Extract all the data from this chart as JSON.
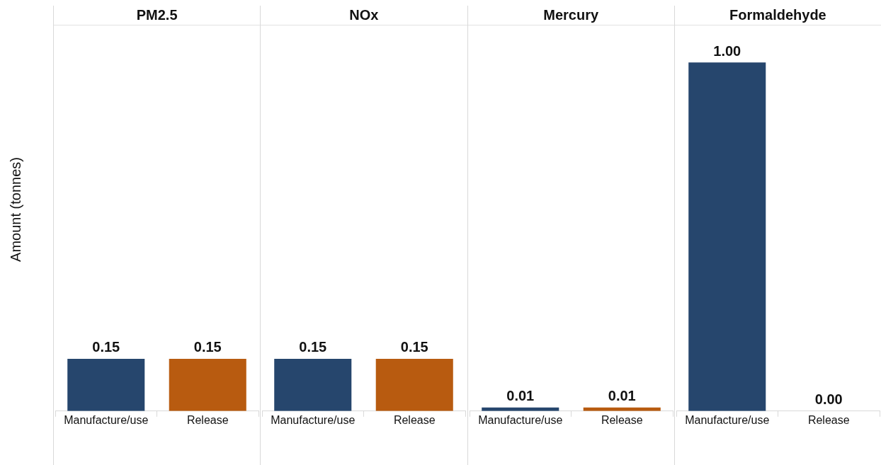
{
  "chart_data": [
    {
      "type": "bar",
      "title": "PM2.5",
      "ylabel": "Amount (tonnes)",
      "categories": [
        "Manufacture/use",
        "Release"
      ],
      "values": [
        0.15,
        0.15
      ],
      "colors": [
        "#26466d",
        "#b85b10"
      ],
      "value_labels": [
        "0.15",
        "0.15"
      ]
    },
    {
      "type": "bar",
      "title": "NOx",
      "categories": [
        "Manufacture/use",
        "Release"
      ],
      "values": [
        0.15,
        0.15
      ],
      "colors": [
        "#26466d",
        "#b85b10"
      ],
      "value_labels": [
        "0.15",
        "0.15"
      ]
    },
    {
      "type": "bar",
      "title": "Mercury",
      "categories": [
        "Manufacture/use",
        "Release"
      ],
      "values": [
        0.01,
        0.01
      ],
      "colors": [
        "#26466d",
        "#b85b10"
      ],
      "value_labels": [
        "0.01",
        "0.01"
      ]
    },
    {
      "type": "bar",
      "title": "Formaldehyde",
      "categories": [
        "Manufacture/use",
        "Release"
      ],
      "values": [
        1.0,
        0.0
      ],
      "colors": [
        "#26466d",
        "#b85b10"
      ],
      "value_labels": [
        "1.00",
        "0.00"
      ]
    }
  ]
}
